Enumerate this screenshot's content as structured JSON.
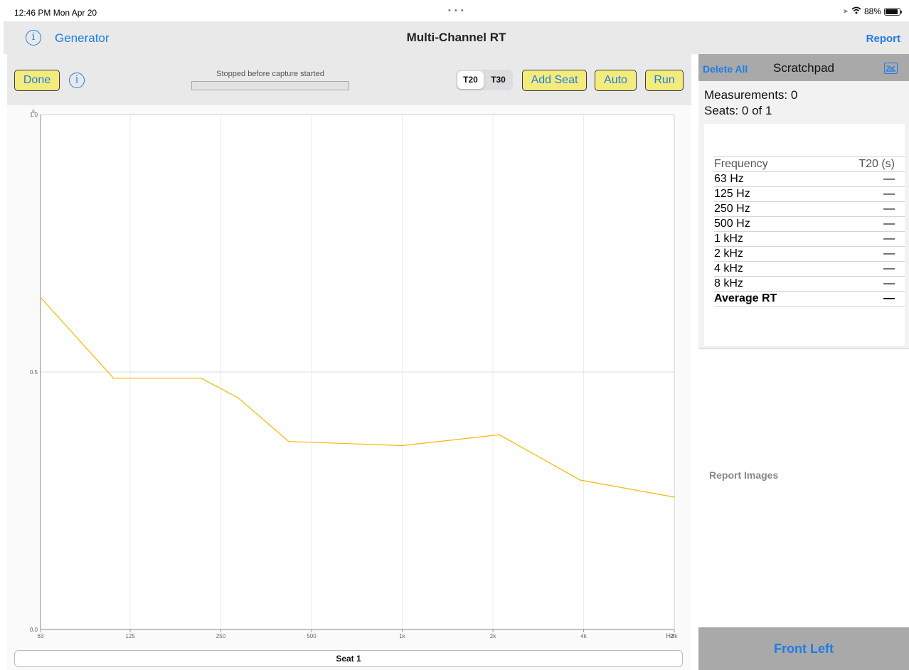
{
  "status_bar": {
    "time": "12:46 PM  Mon Apr 20",
    "dots": "• • •",
    "battery": "88%",
    "battery_level": 0.88
  },
  "nav": {
    "info_icon": "info-circle-icon",
    "generator_label": "Generator",
    "title": "Multi-Channel RT",
    "report_label": "Report"
  },
  "toolbar": {
    "done_label": "Done",
    "info_icon": "info-circle-icon",
    "capture_status": "Stopped before capture started",
    "progress": 0,
    "seg_t20": "T20",
    "seg_t30": "T30",
    "selected_segment": "T20",
    "add_seat_label": "Add Seat",
    "auto_label": "Auto",
    "run_label": "Run"
  },
  "chart_data": {
    "type": "line",
    "title": "",
    "ylabel": "s",
    "xlabel": "Hz",
    "x_scale": "log",
    "xlim": [
      63,
      8000
    ],
    "ylim": [
      0.0,
      1.0
    ],
    "x_ticks": [
      {
        "value": 63,
        "label": "63"
      },
      {
        "value": 125,
        "label": "125"
      },
      {
        "value": 250,
        "label": "250"
      },
      {
        "value": 500,
        "label": "500"
      },
      {
        "value": 1000,
        "label": "1k"
      },
      {
        "value": 2000,
        "label": "2k"
      },
      {
        "value": 4000,
        "label": "4k"
      },
      {
        "value": 8000,
        "label": "8k"
      }
    ],
    "y_ticks": [
      {
        "value": 0.0,
        "label": "0.0"
      },
      {
        "value": 0.5,
        "label": "0.5"
      },
      {
        "value": 1.0,
        "label": "1.0"
      }
    ],
    "series": [
      {
        "color": "#f5b800",
        "points": [
          {
            "x": 63,
            "y": 0.645
          },
          {
            "x": 110,
            "y": 0.488
          },
          {
            "x": 215,
            "y": 0.488
          },
          {
            "x": 285,
            "y": 0.45
          },
          {
            "x": 420,
            "y": 0.365
          },
          {
            "x": 1000,
            "y": 0.357
          },
          {
            "x": 2100,
            "y": 0.378
          },
          {
            "x": 3900,
            "y": 0.29
          },
          {
            "x": 8000,
            "y": 0.257
          }
        ]
      }
    ]
  },
  "seat": {
    "label": "Seat 1"
  },
  "scratchpad": {
    "delete_all_label": "Delete All",
    "title": "Scratchpad",
    "image_icon": "image-icon",
    "measurements": "Measurements: 0",
    "seats": "Seats: 0 of 1",
    "table_header": {
      "frequency": "Frequency",
      "value": "T20 (s)"
    },
    "rows": [
      {
        "frequency": "63 Hz",
        "value": "—"
      },
      {
        "frequency": "125 Hz",
        "value": "—"
      },
      {
        "frequency": "250 Hz",
        "value": "—"
      },
      {
        "frequency": "500 Hz",
        "value": "—"
      },
      {
        "frequency": "1 kHz",
        "value": "—"
      },
      {
        "frequency": "2 kHz",
        "value": "—"
      },
      {
        "frequency": "4 kHz",
        "value": "—"
      },
      {
        "frequency": "8 kHz",
        "value": "—"
      }
    ],
    "average": {
      "frequency": "Average RT",
      "value": "—"
    },
    "report_images_label": "Report Images",
    "front_left_label": "Front Left"
  }
}
